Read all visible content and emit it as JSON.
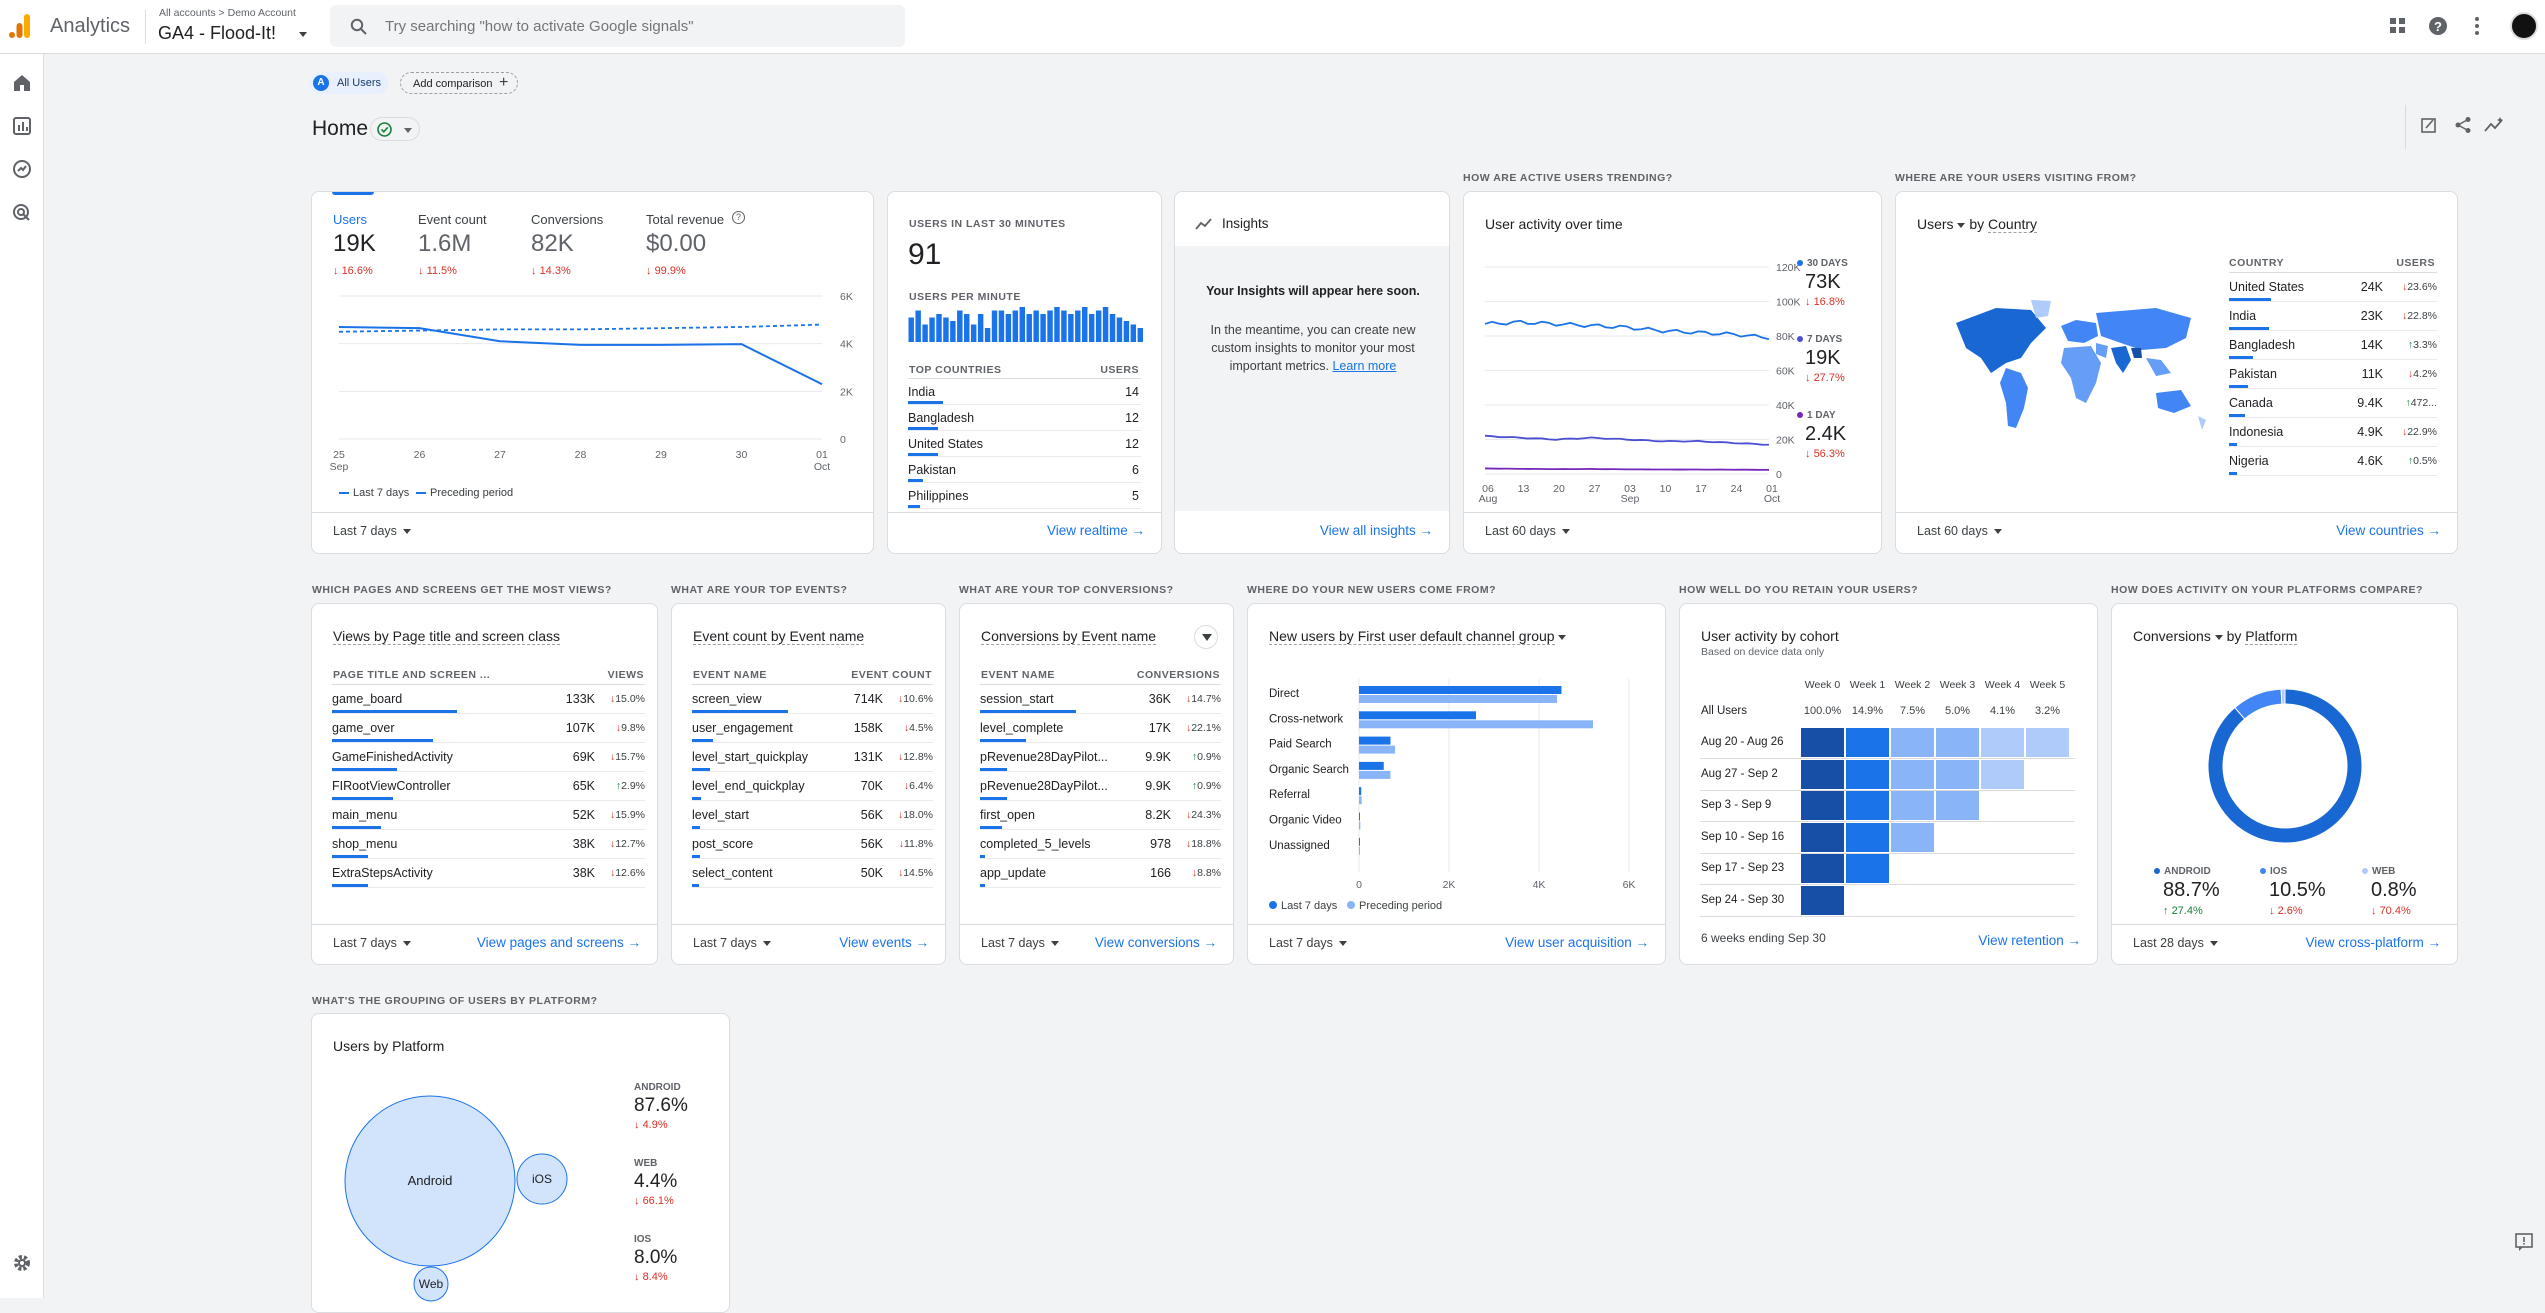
{
  "brand": {
    "name": "Analytics",
    "breadcrumb_all": "All accounts",
    "breadcrumb_sep": ">",
    "breadcrumb_account": "Demo Account",
    "property": "GA4 - Flood-It!"
  },
  "search": {
    "placeholder": "Try searching \"how to activate Google signals\""
  },
  "filters": {
    "segment_badge": "A",
    "segment": "All Users",
    "add_comparison": "Add comparison"
  },
  "page": {
    "title": "Home"
  },
  "overview": {
    "metrics": [
      {
        "label": "Users",
        "value": "19K",
        "change": "16.6%"
      },
      {
        "label": "Event count",
        "value": "1.6M",
        "change": "11.5%"
      },
      {
        "label": "Conversions",
        "value": "82K",
        "change": "14.3%"
      },
      {
        "label": "Total revenue",
        "value": "$0.00",
        "change": "99.9%"
      }
    ],
    "x_ticks": [
      [
        "25",
        "Sep"
      ],
      [
        "26",
        ""
      ],
      [
        "27",
        ""
      ],
      [
        "28",
        ""
      ],
      [
        "29",
        ""
      ],
      [
        "30",
        ""
      ],
      [
        "01",
        "Oct"
      ]
    ],
    "y_ticks": [
      "6K",
      "4K",
      "2K",
      "0"
    ],
    "legend_current": "Last 7 days",
    "legend_previous": "Preceding period",
    "date_range": "Last 7 days"
  },
  "realtime": {
    "header": "USERS IN LAST 30 MINUTES",
    "value": "91",
    "per_minute": "USERS PER MINUTE",
    "bars": [
      7,
      9,
      5,
      7,
      8,
      7,
      6,
      9,
      8,
      5,
      8,
      4,
      9,
      9,
      8,
      9,
      10,
      8,
      9,
      8,
      9,
      10,
      9,
      8,
      9,
      10,
      8,
      9,
      10,
      8,
      7,
      6,
      5,
      4
    ],
    "col_country": "TOP COUNTRIES",
    "col_users": "USERS",
    "rows": [
      {
        "name": "India",
        "value": "14"
      },
      {
        "name": "Bangladesh",
        "value": "12"
      },
      {
        "name": "United States",
        "value": "12"
      },
      {
        "name": "Pakistan",
        "value": "6"
      },
      {
        "name": "Philippines",
        "value": "5"
      }
    ],
    "link": "View realtime"
  },
  "insights": {
    "title": "Insights",
    "heading": "Your Insights will appear here soon.",
    "body": "In the meantime, you can create new custom insights to monitor your most important metrics.",
    "learn_more": "Learn more",
    "link": "View all insights"
  },
  "trend": {
    "section": "HOW ARE ACTIVE USERS TRENDING?",
    "title": "User activity over time",
    "y_ticks": [
      "120K",
      "100K",
      "80K",
      "60K",
      "40K",
      "20K",
      "0"
    ],
    "x_ticks": [
      [
        "06",
        "Aug"
      ],
      [
        "13",
        ""
      ],
      [
        "20",
        ""
      ],
      [
        "27",
        ""
      ],
      [
        "03",
        "Sep"
      ],
      [
        "10",
        ""
      ],
      [
        "17",
        ""
      ],
      [
        "24",
        ""
      ],
      [
        "01",
        "Oct"
      ]
    ],
    "series": [
      {
        "label": "30 DAYS",
        "value": "73K",
        "change": "16.8%",
        "color": "#1a73e8",
        "data": [
          87,
          88,
          87,
          86,
          85,
          83,
          82,
          81,
          79
        ]
      },
      {
        "label": "7 DAYS",
        "value": "19K",
        "change": "27.7%",
        "color": "#4b4fd1",
        "data": [
          22,
          21,
          20,
          21,
          20,
          19,
          19,
          18,
          17
        ]
      },
      {
        "label": "1 DAY",
        "value": "2.4K",
        "change": "56.3%",
        "color": "#7627bb",
        "data": [
          3.2,
          3.0,
          2.8,
          2.9,
          2.7,
          2.6,
          2.6,
          2.5,
          2.4
        ]
      }
    ],
    "date_range": "Last 60 days"
  },
  "geo": {
    "section": "WHERE ARE YOUR USERS VISITING FROM?",
    "metric": "Users",
    "by": "by",
    "dim": "Country",
    "col_country": "COUNTRY",
    "col_users": "USERS",
    "rows": [
      {
        "name": "United States",
        "value": "24K",
        "change": "23.6%",
        "dir": "down"
      },
      {
        "name": "India",
        "value": "23K",
        "change": "22.8%",
        "dir": "down"
      },
      {
        "name": "Bangladesh",
        "value": "14K",
        "change": "3.3%",
        "dir": "up"
      },
      {
        "name": "Pakistan",
        "value": "11K",
        "change": "4.2%",
        "dir": "down"
      },
      {
        "name": "Canada",
        "value": "9.4K",
        "change": "472...",
        "dir": "up"
      },
      {
        "name": "Indonesia",
        "value": "4.9K",
        "change": "22.9%",
        "dir": "down"
      },
      {
        "name": "Nigeria",
        "value": "4.6K",
        "change": "0.5%",
        "dir": "up"
      }
    ],
    "date_range": "Last 60 days",
    "link": "View countries"
  },
  "pages": {
    "section": "WHICH PAGES AND SCREENS GET THE MOST VIEWS?",
    "title": "Views by Page title and screen class",
    "col1": "PAGE TITLE AND SCREEN ...",
    "col2": "VIEWS",
    "rows": [
      {
        "name": "game_board",
        "value": "133K",
        "change": "15.0%",
        "dir": "down"
      },
      {
        "name": "game_over",
        "value": "107K",
        "change": "9.8%",
        "dir": "down"
      },
      {
        "name": "GameFinishedActivity",
        "value": "69K",
        "change": "15.7%",
        "dir": "down"
      },
      {
        "name": "FIRootViewController",
        "value": "65K",
        "change": "2.9%",
        "dir": "up"
      },
      {
        "name": "main_menu",
        "value": "52K",
        "change": "15.9%",
        "dir": "down"
      },
      {
        "name": "shop_menu",
        "value": "38K",
        "change": "12.7%",
        "dir": "down"
      },
      {
        "name": "ExtraStepsActivity",
        "value": "38K",
        "change": "12.6%",
        "dir": "down"
      }
    ],
    "date_range": "Last 7 days",
    "link": "View pages and screens"
  },
  "events": {
    "section": "WHAT ARE YOUR TOP EVENTS?",
    "title": "Event count by Event name",
    "col1": "EVENT NAME",
    "col2": "EVENT COUNT",
    "rows": [
      {
        "name": "screen_view",
        "value": "714K",
        "change": "10.6%",
        "dir": "down"
      },
      {
        "name": "user_engagement",
        "value": "158K",
        "change": "4.5%",
        "dir": "down"
      },
      {
        "name": "level_start_quickplay",
        "value": "131K",
        "change": "12.8%",
        "dir": "down"
      },
      {
        "name": "level_end_quickplay",
        "value": "70K",
        "change": "6.4%",
        "dir": "down"
      },
      {
        "name": "level_start",
        "value": "56K",
        "change": "18.0%",
        "dir": "down"
      },
      {
        "name": "post_score",
        "value": "56K",
        "change": "11.8%",
        "dir": "down"
      },
      {
        "name": "select_content",
        "value": "50K",
        "change": "14.5%",
        "dir": "down"
      }
    ],
    "date_range": "Last 7 days",
    "link": "View events"
  },
  "conversions": {
    "section": "WHAT ARE YOUR TOP CONVERSIONS?",
    "title": "Conversions by Event name",
    "col1": "EVENT NAME",
    "col2": "CONVERSIONS",
    "rows": [
      {
        "name": "session_start",
        "value": "36K",
        "change": "14.7%",
        "dir": "down"
      },
      {
        "name": "level_complete",
        "value": "17K",
        "change": "22.1%",
        "dir": "down"
      },
      {
        "name": "pRevenue28DayPilot...",
        "value": "9.9K",
        "change": "0.9%",
        "dir": "up"
      },
      {
        "name": "pRevenue28DayPilot...",
        "value": "9.9K",
        "change": "0.9%",
        "dir": "up"
      },
      {
        "name": "first_open",
        "value": "8.2K",
        "change": "24.3%",
        "dir": "down"
      },
      {
        "name": "completed_5_levels",
        "value": "978",
        "change": "18.8%",
        "dir": "down"
      },
      {
        "name": "app_update",
        "value": "166",
        "change": "8.8%",
        "dir": "down"
      }
    ],
    "date_range": "Last 7 days",
    "link": "View conversions"
  },
  "acquisition": {
    "section": "WHERE DO YOUR NEW USERS COME FROM?",
    "title": "New users by First user default channel group",
    "x_ticks": [
      "0",
      "2K",
      "4K",
      "6K"
    ],
    "legend_current": "Last 7 days",
    "legend_previous": "Preceding period",
    "date_range": "Last 7 days",
    "link": "View user acquisition"
  },
  "chart_data": {
    "type": "bar",
    "orientation": "horizontal",
    "title": "New users by First user default channel group",
    "categories": [
      "Direct",
      "Cross-network",
      "Paid Search",
      "Organic Search",
      "Referral",
      "Organic Video",
      "Unassigned"
    ],
    "series": [
      {
        "name": "Last 7 days",
        "values": [
          4500,
          2600,
          700,
          550,
          50,
          20,
          10
        ]
      },
      {
        "name": "Preceding period",
        "values": [
          4400,
          5200,
          800,
          700,
          60,
          30,
          10
        ]
      }
    ],
    "xlim": [
      0,
      6000
    ]
  },
  "retention": {
    "section": "HOW WELL DO YOU RETAIN YOUR USERS?",
    "title": "User activity by cohort",
    "subtitle": "Based on device data only",
    "weeks": [
      "Week 0",
      "Week 1",
      "Week 2",
      "Week 3",
      "Week 4",
      "Week 5"
    ],
    "all_label": "All Users",
    "all_values": [
      "100.0%",
      "14.9%",
      "7.5%",
      "5.0%",
      "4.1%",
      "3.2%"
    ],
    "cohorts": [
      {
        "label": "Aug 20 - Aug 26",
        "cells": [
          100,
          15,
          8,
          5,
          4,
          3
        ]
      },
      {
        "label": "Aug 27 - Sep 2",
        "cells": [
          100,
          15,
          8,
          5,
          4
        ]
      },
      {
        "label": "Sep 3 - Sep 9",
        "cells": [
          100,
          15,
          7,
          5
        ]
      },
      {
        "label": "Sep 10 - Sep 16",
        "cells": [
          100,
          14,
          7
        ]
      },
      {
        "label": "Sep 17 - Sep 23",
        "cells": [
          100,
          14
        ]
      },
      {
        "label": "Sep 24 - Sep 30",
        "cells": [
          100
        ]
      }
    ],
    "footer": "6 weeks ending Sep 30",
    "link": "View retention"
  },
  "platforms": {
    "section": "HOW DOES ACTIVITY ON YOUR PLATFORMS COMPARE?",
    "metric": "Conversions",
    "by": "by",
    "dim": "Platform",
    "items": [
      {
        "label": "ANDROID",
        "value": "88.7%",
        "change": "27.4%",
        "dir": "up",
        "share": 88.7,
        "color": "#1967d2"
      },
      {
        "label": "IOS",
        "value": "10.5%",
        "change": "2.6%",
        "dir": "down",
        "share": 10.5,
        "color": "#4285f4"
      },
      {
        "label": "WEB",
        "value": "0.8%",
        "change": "70.4%",
        "dir": "down",
        "share": 0.8,
        "color": "#aecbfa"
      }
    ],
    "date_range": "Last 28 days",
    "link": "View cross-platform"
  },
  "grouping": {
    "section": "WHAT'S THE GROUPING OF USERS BY PLATFORM?",
    "title": "Users by Platform",
    "bubbles": [
      "Android",
      "iOS",
      "Web"
    ],
    "items": [
      {
        "label": "ANDROID",
        "value": "87.6%",
        "change": "4.9%"
      },
      {
        "label": "WEB",
        "value": "4.4%",
        "change": "66.1%"
      },
      {
        "label": "IOS",
        "value": "8.0%",
        "change": "8.4%"
      }
    ]
  }
}
